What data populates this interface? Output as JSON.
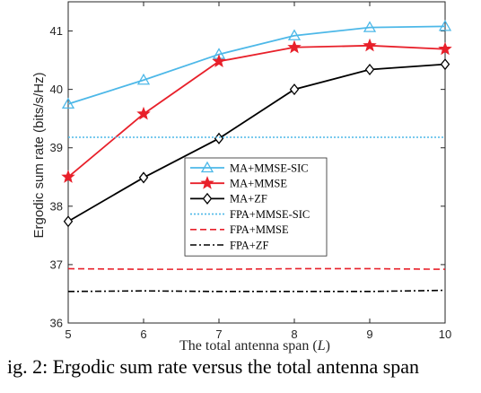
{
  "caption": "ig. 2: Ergodic sum rate versus the total antenna span",
  "chart_data": {
    "type": "line",
    "xlabel": "The total antenna span (",
    "xlabel_var": "L",
    "xlabel_end": ")",
    "ylabel": "Ergodic sum rate (bits/s/Hz)",
    "x": [
      5,
      6,
      7,
      8,
      9,
      10
    ],
    "xlim": [
      5,
      10
    ],
    "ylim": [
      36,
      41.5
    ],
    "xticks": [
      "5",
      "6",
      "7",
      "8",
      "9",
      "10"
    ],
    "yticks": [
      "36",
      "37",
      "38",
      "39",
      "40",
      "41"
    ],
    "grid": false,
    "legend_position": "center-left",
    "series": [
      {
        "name": "MA+MMSE-SIC",
        "values": [
          39.75,
          40.16,
          40.6,
          40.92,
          41.06,
          41.08
        ],
        "color": "#4db8e8",
        "marker": "triangle",
        "dash": ""
      },
      {
        "name": "MA+MMSE",
        "values": [
          38.5,
          39.58,
          40.48,
          40.72,
          40.75,
          40.69
        ],
        "color": "#e8202a",
        "marker": "star",
        "dash": ""
      },
      {
        "name": "MA+ZF",
        "values": [
          37.74,
          38.49,
          39.16,
          40.0,
          40.34,
          40.43
        ],
        "color": "#000000",
        "marker": "diamond",
        "dash": ""
      },
      {
        "name": "FPA+MMSE-SIC",
        "values": [
          39.18,
          39.18,
          39.18,
          39.18,
          39.18,
          39.18
        ],
        "color": "#4db8e8",
        "marker": "none",
        "dash": "2,2"
      },
      {
        "name": "FPA+MMSE",
        "values": [
          36.93,
          36.92,
          36.92,
          36.93,
          36.93,
          36.92
        ],
        "color": "#e8202a",
        "marker": "none",
        "dash": "7,4"
      },
      {
        "name": "FPA+ZF",
        "values": [
          36.54,
          36.55,
          36.54,
          36.54,
          36.54,
          36.56
        ],
        "color": "#000000",
        "marker": "none",
        "dash": "7,3,2,3"
      }
    ]
  }
}
